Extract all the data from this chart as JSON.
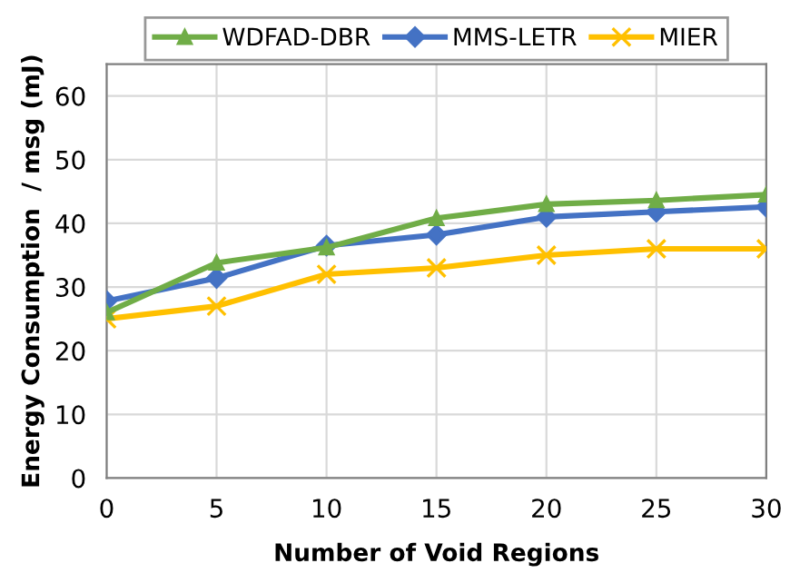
{
  "chart_data": {
    "type": "line",
    "xlabel": "Number of Void Regions",
    "ylabel": "Energy Consumption  / msg (mJ)",
    "x": [
      0,
      5,
      10,
      15,
      20,
      25,
      30
    ],
    "series": [
      {
        "name": "WDFAD-DBR",
        "color": "#70ad47",
        "marker": "triangle",
        "values": [
          26,
          33.8,
          36.2,
          40.8,
          43,
          43.6,
          44.5
        ]
      },
      {
        "name": "MMS-LETR",
        "color": "#4472c4",
        "marker": "diamond",
        "values": [
          27.8,
          31.4,
          36.5,
          38.2,
          41,
          41.8,
          42.6
        ]
      },
      {
        "name": "MIER",
        "color": "#ffc000",
        "marker": "cross",
        "values": [
          25,
          27,
          32,
          33,
          35,
          36,
          36
        ]
      }
    ],
    "xlim": [
      0,
      30
    ],
    "xticks": [
      0,
      5,
      10,
      15,
      20,
      25,
      30
    ],
    "ylim": [
      0,
      65
    ],
    "yticks": [
      0,
      10,
      20,
      30,
      40,
      50,
      60
    ],
    "grid": true,
    "legend": "top",
    "line_style": "solid"
  }
}
